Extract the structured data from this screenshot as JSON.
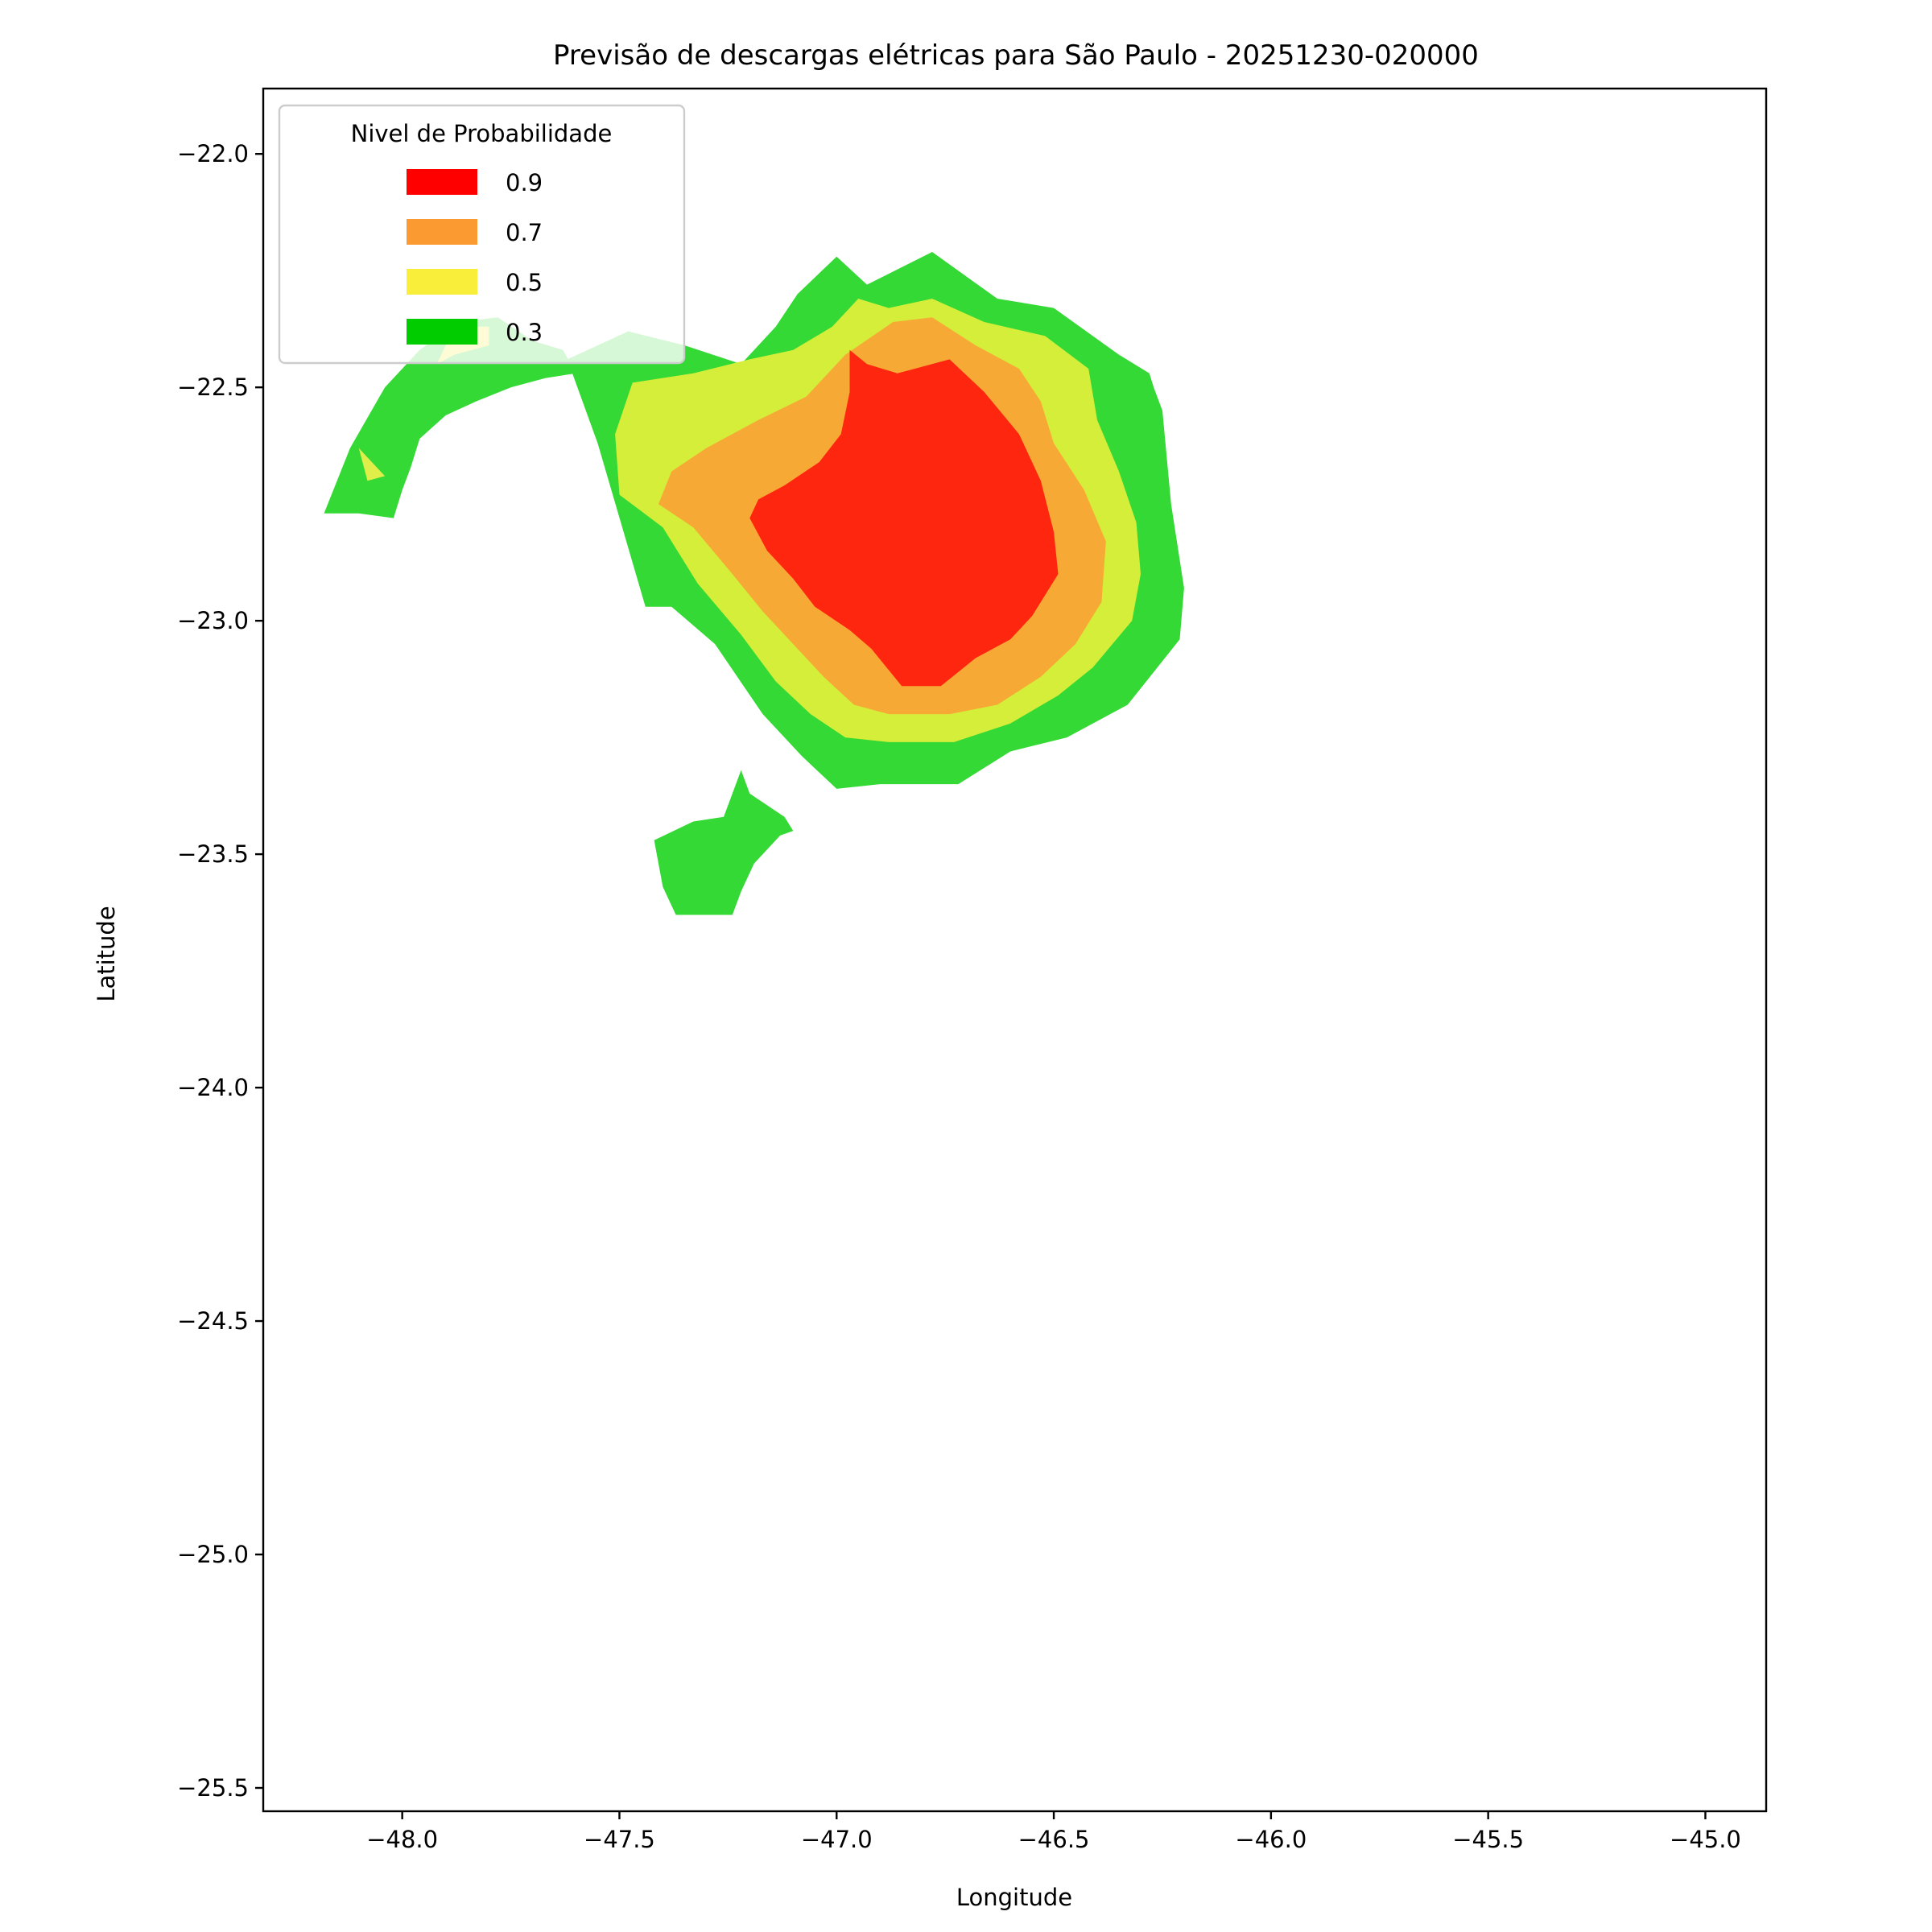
{
  "chart_data": {
    "type": "heatmap",
    "title": "Previsão de descargas elétricas para São Paulo - 20251230-020000",
    "xlabel": "Longitude",
    "ylabel": "Latitude",
    "xlim": [
      -48.32,
      -44.86
    ],
    "ylim": [
      -25.55,
      -21.86
    ],
    "xticks": [
      -48.0,
      -47.5,
      -47.0,
      -46.5,
      -46.0,
      -45.5,
      -45.0
    ],
    "xtick_labels": [
      "−48.0",
      "−47.5",
      "−47.0",
      "−46.5",
      "−46.0",
      "−45.5",
      "−45.0"
    ],
    "yticks": [
      -22.0,
      -22.5,
      -23.0,
      -23.5,
      -24.0,
      -24.5,
      -25.0,
      -25.5
    ],
    "ytick_labels": [
      "−22.0",
      "−22.5",
      "−23.0",
      "−23.5",
      "−24.0",
      "−24.5",
      "−25.0",
      "−25.5"
    ],
    "grid": false,
    "legend": {
      "title": "Nivel de Probabilidade",
      "placement": "top-left",
      "entries": [
        {
          "label": "0.9",
          "color": "#ff0000"
        },
        {
          "label": "0.7",
          "color": "#fb9a30"
        },
        {
          "label": "0.5",
          "color": "#f9ee3a"
        },
        {
          "label": "0.3",
          "color": "#00cc00"
        }
      ]
    },
    "regions": [
      {
        "level": 0.3,
        "color": "#35d935",
        "name": "main-cell",
        "polygon": [
          [
            -47.0,
            -22.22
          ],
          [
            -46.93,
            -22.28
          ],
          [
            -46.78,
            -22.21
          ],
          [
            -46.63,
            -22.31
          ],
          [
            -46.5,
            -22.33
          ],
          [
            -46.35,
            -22.43
          ],
          [
            -46.28,
            -22.47
          ],
          [
            -46.27,
            -22.5
          ],
          [
            -46.25,
            -22.55
          ],
          [
            -46.23,
            -22.75
          ],
          [
            -46.2,
            -22.93
          ],
          [
            -46.21,
            -23.04
          ],
          [
            -46.33,
            -23.18
          ],
          [
            -46.47,
            -23.25
          ],
          [
            -46.6,
            -23.28
          ],
          [
            -46.72,
            -23.35
          ],
          [
            -46.9,
            -23.35
          ],
          [
            -47.0,
            -23.36
          ],
          [
            -47.08,
            -23.29
          ],
          [
            -47.17,
            -23.2
          ],
          [
            -47.28,
            -23.05
          ],
          [
            -47.38,
            -22.97
          ],
          [
            -47.44,
            -22.97
          ],
          [
            -47.55,
            -22.62
          ],
          [
            -47.62,
            -22.44
          ],
          [
            -47.48,
            -22.38
          ],
          [
            -47.35,
            -22.41
          ],
          [
            -47.22,
            -22.45
          ],
          [
            -47.14,
            -22.37
          ],
          [
            -47.09,
            -22.3
          ]
        ]
      },
      {
        "level": 0.5,
        "color": "#d4ee3a",
        "name": "main-cell",
        "polygon": [
          [
            -46.95,
            -22.31
          ],
          [
            -46.88,
            -22.33
          ],
          [
            -46.78,
            -22.31
          ],
          [
            -46.66,
            -22.36
          ],
          [
            -46.52,
            -22.39
          ],
          [
            -46.42,
            -22.46
          ],
          [
            -46.4,
            -22.57
          ],
          [
            -46.35,
            -22.68
          ],
          [
            -46.31,
            -22.79
          ],
          [
            -46.3,
            -22.9
          ],
          [
            -46.32,
            -23.0
          ],
          [
            -46.41,
            -23.1
          ],
          [
            -46.49,
            -23.16
          ],
          [
            -46.6,
            -23.22
          ],
          [
            -46.73,
            -23.26
          ],
          [
            -46.88,
            -23.26
          ],
          [
            -46.98,
            -23.25
          ],
          [
            -47.06,
            -23.2
          ],
          [
            -47.14,
            -23.13
          ],
          [
            -47.22,
            -23.03
          ],
          [
            -47.32,
            -22.92
          ],
          [
            -47.4,
            -22.8
          ],
          [
            -47.5,
            -22.73
          ],
          [
            -47.51,
            -22.6
          ],
          [
            -47.47,
            -22.49
          ],
          [
            -47.33,
            -22.47
          ],
          [
            -47.2,
            -22.44
          ],
          [
            -47.1,
            -22.42
          ],
          [
            -47.01,
            -22.37
          ]
        ]
      },
      {
        "level": 0.7,
        "color": "#f7a935",
        "name": "main-cell",
        "polygon": [
          [
            -46.87,
            -22.36
          ],
          [
            -46.78,
            -22.35
          ],
          [
            -46.68,
            -22.41
          ],
          [
            -46.58,
            -22.46
          ],
          [
            -46.53,
            -22.53
          ],
          [
            -46.5,
            -22.62
          ],
          [
            -46.43,
            -22.72
          ],
          [
            -46.38,
            -22.83
          ],
          [
            -46.39,
            -22.96
          ],
          [
            -46.45,
            -23.05
          ],
          [
            -46.53,
            -23.12
          ],
          [
            -46.63,
            -23.18
          ],
          [
            -46.74,
            -23.2
          ],
          [
            -46.88,
            -23.2
          ],
          [
            -46.96,
            -23.18
          ],
          [
            -47.03,
            -23.12
          ],
          [
            -47.1,
            -23.05
          ],
          [
            -47.17,
            -22.98
          ],
          [
            -47.24,
            -22.9
          ],
          [
            -47.33,
            -22.8
          ],
          [
            -47.41,
            -22.75
          ],
          [
            -47.38,
            -22.68
          ],
          [
            -47.3,
            -22.63
          ],
          [
            -47.18,
            -22.57
          ],
          [
            -47.07,
            -22.52
          ],
          [
            -46.98,
            -22.43
          ]
        ]
      },
      {
        "level": 0.9,
        "color": "#ff2610",
        "name": "main-cell",
        "polygon": [
          [
            -46.97,
            -22.42
          ],
          [
            -46.93,
            -22.45
          ],
          [
            -46.86,
            -22.47
          ],
          [
            -46.74,
            -22.44
          ],
          [
            -46.66,
            -22.51
          ],
          [
            -46.58,
            -22.6
          ],
          [
            -46.53,
            -22.7
          ],
          [
            -46.5,
            -22.81
          ],
          [
            -46.49,
            -22.9
          ],
          [
            -46.55,
            -22.99
          ],
          [
            -46.6,
            -23.04
          ],
          [
            -46.68,
            -23.08
          ],
          [
            -46.76,
            -23.14
          ],
          [
            -46.85,
            -23.14
          ],
          [
            -46.92,
            -23.06
          ],
          [
            -46.97,
            -23.02
          ],
          [
            -47.05,
            -22.97
          ],
          [
            -47.1,
            -22.91
          ],
          [
            -47.16,
            -22.85
          ],
          [
            -47.2,
            -22.78
          ],
          [
            -47.18,
            -22.74
          ],
          [
            -47.12,
            -22.71
          ],
          [
            -47.04,
            -22.66
          ],
          [
            -46.99,
            -22.6
          ],
          [
            -46.97,
            -22.51
          ]
        ]
      },
      {
        "level": 0.3,
        "color": "#35d935",
        "name": "south-cell",
        "polygon": [
          [
            -47.26,
            -23.42
          ],
          [
            -47.33,
            -23.43
          ],
          [
            -47.42,
            -23.47
          ],
          [
            -47.4,
            -23.57
          ],
          [
            -47.37,
            -23.63
          ],
          [
            -47.3,
            -23.63
          ],
          [
            -47.24,
            -23.63
          ],
          [
            -47.22,
            -23.58
          ],
          [
            -47.19,
            -23.52
          ],
          [
            -47.13,
            -23.46
          ],
          [
            -47.1,
            -23.45
          ],
          [
            -47.12,
            -23.42
          ],
          [
            -47.2,
            -23.37
          ],
          [
            -47.22,
            -23.32
          ]
        ]
      },
      {
        "level": 0.3,
        "color": "#35d935",
        "name": "west-arc",
        "polygon": [
          [
            -48.18,
            -22.77
          ],
          [
            -48.12,
            -22.63
          ],
          [
            -48.04,
            -22.5
          ],
          [
            -47.96,
            -22.42
          ],
          [
            -47.87,
            -22.36
          ],
          [
            -47.78,
            -22.35
          ],
          [
            -47.7,
            -22.4
          ],
          [
            -47.63,
            -22.42
          ],
          [
            -47.6,
            -22.47
          ],
          [
            -47.67,
            -22.48
          ],
          [
            -47.75,
            -22.5
          ],
          [
            -47.83,
            -22.53
          ],
          [
            -47.9,
            -22.56
          ],
          [
            -47.96,
            -22.61
          ],
          [
            -47.98,
            -22.67
          ],
          [
            -48.0,
            -22.72
          ],
          [
            -48.02,
            -22.78
          ],
          [
            -48.1,
            -22.77
          ]
        ]
      },
      {
        "level": 0.5,
        "color": "#f9ee3a",
        "name": "west-arc",
        "polygon": [
          [
            -47.88,
            -22.37
          ],
          [
            -47.8,
            -22.37
          ],
          [
            -47.8,
            -22.41
          ],
          [
            -47.88,
            -22.43
          ],
          [
            -47.92,
            -22.45
          ]
        ]
      },
      {
        "level": 0.5,
        "color": "#e0ee4a",
        "name": "west-arc",
        "polygon": [
          [
            -48.1,
            -22.63
          ],
          [
            -48.08,
            -22.7
          ],
          [
            -48.04,
            -22.69
          ]
        ]
      }
    ]
  }
}
